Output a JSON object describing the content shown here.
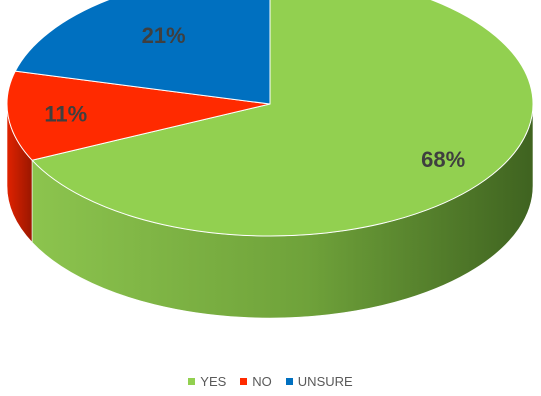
{
  "chart_data": {
    "type": "pie",
    "title": "",
    "categories": [
      "YES",
      "NO",
      "UNSURE"
    ],
    "values": [
      68,
      11,
      21
    ],
    "labels": [
      "68%",
      "11%",
      "21%"
    ],
    "colors": [
      "#92d050",
      "#ff2a00",
      "#0070c0"
    ],
    "side_colors": [
      "#4f7a27",
      "#b01a00",
      "#004d86"
    ],
    "legend_position": "bottom",
    "style": "3d"
  }
}
